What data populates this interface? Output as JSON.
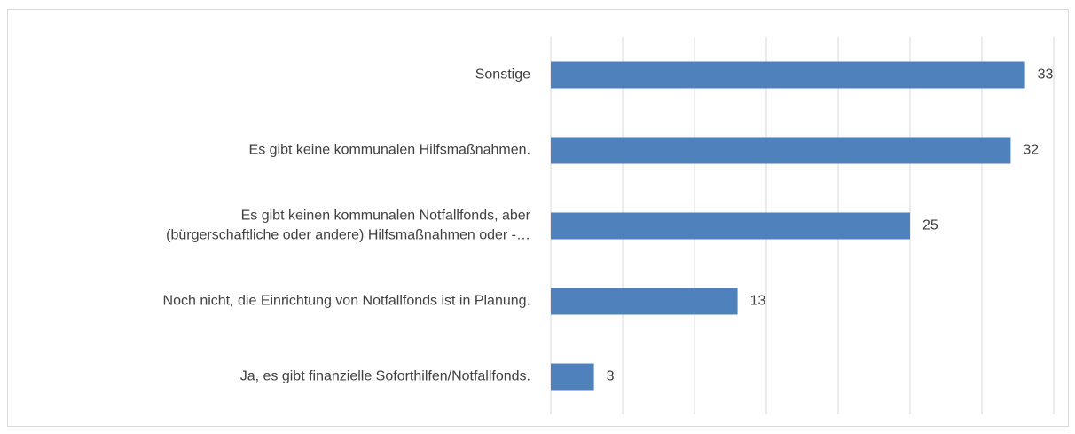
{
  "chart_data": {
    "type": "bar",
    "orientation": "horizontal",
    "categories": [
      "Sonstige",
      "Es gibt keine kommunalen Hilfsmaßnahmen.",
      "Es gibt keinen kommunalen Notfallfonds, aber\n(bürgerschaftliche oder andere) Hilfsmaßnahmen oder -…",
      "Noch nicht, die Einrichtung von Notfallfonds ist in Planung.",
      "Ja, es gibt finanzielle Soforthilfen/Notfallfonds."
    ],
    "values": [
      33,
      32,
      25,
      13,
      3
    ],
    "color": "#4f81bd",
    "xlim": [
      0,
      35
    ],
    "xticks": [
      0,
      5,
      10,
      15,
      20,
      25,
      30,
      35
    ],
    "grid": true
  }
}
